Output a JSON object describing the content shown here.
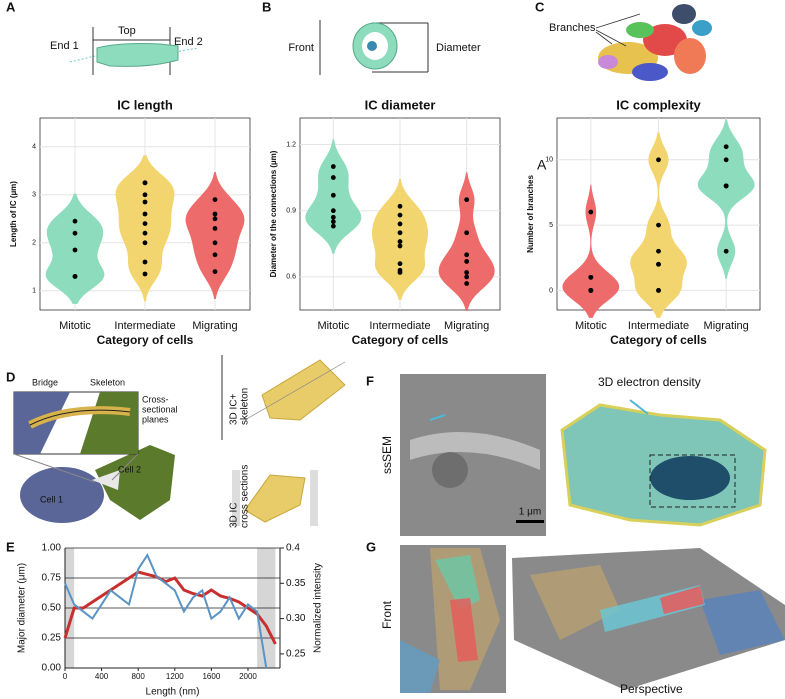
{
  "panels": {
    "A": {
      "letter": "A",
      "end1": "End 1",
      "top": "Top",
      "end2": "End 2"
    },
    "B": {
      "letter": "B",
      "front": "Front",
      "diameter": "Diameter"
    },
    "C": {
      "letter": "C",
      "branches": "Branches"
    },
    "D": {
      "letter": "D",
      "bridge": "Bridge",
      "skeleton": "Skeleton",
      "planes": [
        "Cross-",
        "sectional",
        "planes"
      ],
      "cell1": "Cell 1",
      "cell2": "Cell 2",
      "skeleton_view": [
        "3D IC+",
        "skeleton"
      ],
      "sections_view": [
        "3D IC",
        "cross sections"
      ]
    },
    "E": {
      "letter": "E"
    },
    "F": {
      "letter": "F",
      "method": "ssSEM",
      "scale": "1 μm",
      "density": "3D electron density"
    },
    "G": {
      "letter": "G",
      "front": "Front",
      "perspective": "Perspective"
    }
  },
  "chart_data": [
    {
      "type": "violin",
      "title": "IC length",
      "xlabel": "Category of cells",
      "ylabel": "Length of IC (µm)",
      "categories": [
        "Mitotic",
        "Intermediate",
        "Migrating"
      ],
      "colors": [
        "#8ddcbd",
        "#f3d56f",
        "#ee6b6b"
      ],
      "values": [
        [
          2.45,
          2.2,
          1.85,
          1.3,
          1.3
        ],
        [
          3.25,
          3.25,
          3.0,
          2.85,
          2.6,
          2.4,
          2.2,
          2.0,
          1.6,
          1.35
        ],
        [
          2.9,
          2.6,
          2.5,
          2.3,
          2.0,
          1.75,
          1.4
        ]
      ],
      "ylim": [
        0.6,
        4.6
      ],
      "yticks": [
        1,
        2,
        3,
        4
      ],
      "grid": true
    },
    {
      "type": "violin",
      "title": "IC diameter",
      "xlabel": "Category of cells",
      "ylabel": "Diameter of the connections (µm)",
      "categories": [
        "Mitotic",
        "Intermediate",
        "Migrating"
      ],
      "colors": [
        "#8ddcbd",
        "#f3d56f",
        "#ee6b6b"
      ],
      "values": [
        [
          1.1,
          1.05,
          0.97,
          0.9,
          0.87,
          0.85,
          0.83
        ],
        [
          0.92,
          0.88,
          0.84,
          0.8,
          0.76,
          0.74,
          0.66,
          0.63,
          0.62
        ],
        [
          0.95,
          0.8,
          0.7,
          0.67,
          0.62,
          0.6,
          0.57
        ]
      ],
      "ylim": [
        0.45,
        1.32
      ],
      "yticks": [
        0.6,
        0.9,
        1.2
      ],
      "grid": true
    },
    {
      "type": "violin",
      "title": "IC complexity",
      "xlabel": "Category of cells",
      "ylabel": "Number of branches",
      "annotation": "A",
      "categories": [
        "Mitotic",
        "Intermediate",
        "Migrating"
      ],
      "colors": [
        "#ee6b6b",
        "#f3d56f",
        "#8ddcbd"
      ],
      "values": [
        [
          6,
          1,
          1,
          0,
          0,
          0,
          0
        ],
        [
          10,
          5,
          3,
          2,
          2,
          0,
          0
        ],
        [
          11,
          10,
          8,
          8,
          8,
          3
        ]
      ],
      "ylim": [
        -1.5,
        13.2
      ],
      "yticks": [
        0,
        5,
        10
      ],
      "grid": true
    },
    {
      "type": "line",
      "xlabel": "Length (nm)",
      "ylabel": "Major diameter (μm)",
      "y2label": "Normalized intensity",
      "x": [
        0,
        100,
        200,
        300,
        400,
        500,
        600,
        700,
        800,
        900,
        1000,
        1100,
        1200,
        1300,
        1400,
        1500,
        1600,
        1700,
        1800,
        1900,
        2000,
        2100,
        2200,
        2300
      ],
      "series": [
        {
          "color": "#c8302f",
          "values": [
            0.25,
            0.5,
            0.5,
            0.55,
            0.6,
            0.65,
            0.7,
            0.75,
            0.8,
            0.78,
            0.76,
            0.72,
            0.75,
            0.65,
            0.62,
            0.6,
            0.65,
            0.6,
            0.58,
            0.55,
            0.5,
            0.45,
            0.35,
            0.2
          ]
        },
        {
          "color": "#5b93c4",
          "axis": "y2",
          "values": [
            0.35,
            0.32,
            0.31,
            0.3,
            0.32,
            0.34,
            0.33,
            0.32,
            0.37,
            0.39,
            0.36,
            0.35,
            0.34,
            0.31,
            0.33,
            0.34,
            0.3,
            0.31,
            0.33,
            0.3,
            0.32,
            0.31,
            0.23,
            null
          ]
        }
      ],
      "xlim": [
        0,
        2350
      ],
      "xticks": [
        0,
        400,
        800,
        1200,
        1600,
        2000
      ],
      "ylim": [
        0,
        1
      ],
      "yticks": [
        {
          "value": 0,
          "label": "0.00"
        },
        0.25,
        {
          "value": 0.5,
          "label": "0.50"
        },
        0.75,
        {
          "value": 1,
          "label": "1.00"
        }
      ],
      "y2lim": [
        0.23,
        0.4
      ],
      "y2ticks": [
        0.25,
        {
          "value": 0.3,
          "label": "0.30"
        },
        0.35,
        0.4
      ],
      "highlight_ranges": [
        [
          0,
          100
        ],
        [
          2100,
          2300
        ]
      ],
      "grid": true
    }
  ]
}
